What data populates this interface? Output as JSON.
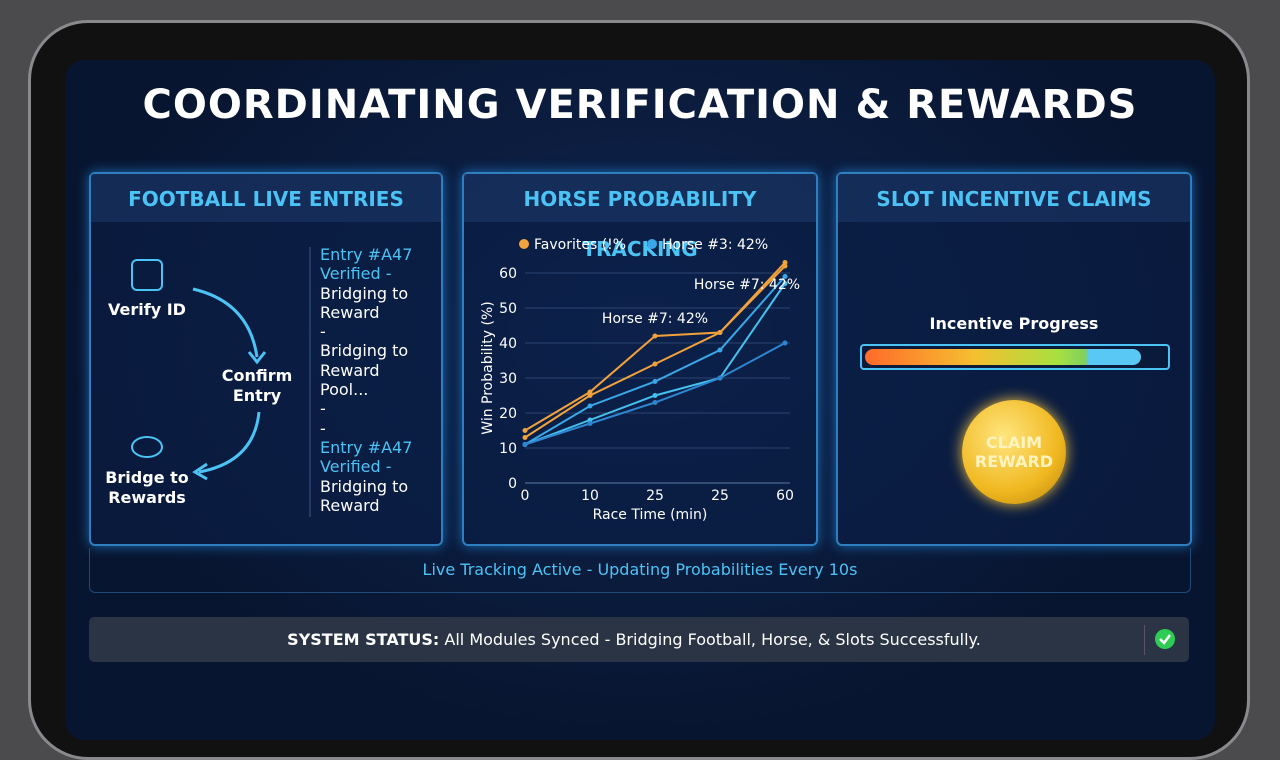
{
  "title": "COORDINATING VERIFICATION & REWARDS",
  "football": {
    "title": "FOOTBALL LIVE ENTRIES",
    "steps": [
      "Verify ID",
      "Confirm Entry",
      "Bridge to Rewards"
    ],
    "entries": [
      "Entry #A47",
      "Verified -",
      "Bridging to Reward",
      "-",
      "Bridging to Reward Pool...",
      "-",
      "-",
      "Entry #A47",
      "Verified -",
      "Bridging to Reward"
    ]
  },
  "chart_data": {
    "type": "line",
    "title": "HORSE PROBABILITY TRACKING",
    "x_label": "Race Time (min)",
    "y_label": "Win Probability (%)",
    "categories": [
      "0",
      "10",
      "25",
      "25",
      "60"
    ],
    "series": [
      {
        "name": "Favorites (!%",
        "color": "#f2a23a",
        "values": [
          13,
          25,
          34,
          43,
          63
        ]
      },
      {
        "color": "#f2a23a",
        "values": [
          15,
          26,
          42,
          43,
          62
        ]
      },
      {
        "name": "Horse #3: 42%",
        "color": "#3aa8e8",
        "values": [
          11,
          22,
          29,
          38,
          59
        ]
      },
      {
        "color": "#46c0ee",
        "values": [
          11,
          18,
          25,
          30,
          57
        ]
      },
      {
        "color": "#2f86d0",
        "values": [
          11,
          17,
          23,
          30,
          40
        ]
      }
    ],
    "annotations": [
      "Horse #7: 42%",
      "Horse #7: 42%"
    ],
    "ylim": [
      0,
      60
    ],
    "yticks": [
      0,
      10,
      20,
      30,
      40,
      50,
      60
    ],
    "grid": true
  },
  "slots": {
    "title": "SLOT INCENTIVE CLAIMS",
    "progress_label": "Incentive Progress",
    "button": "CLAIM REWARD"
  },
  "live": "Live Tracking Active - Updating Probabilities Every 10s",
  "status": {
    "label": "SYSTEM STATUS:",
    "text": "All Modules Synced - Bridging Football, Horse, & Slots Successfully."
  }
}
